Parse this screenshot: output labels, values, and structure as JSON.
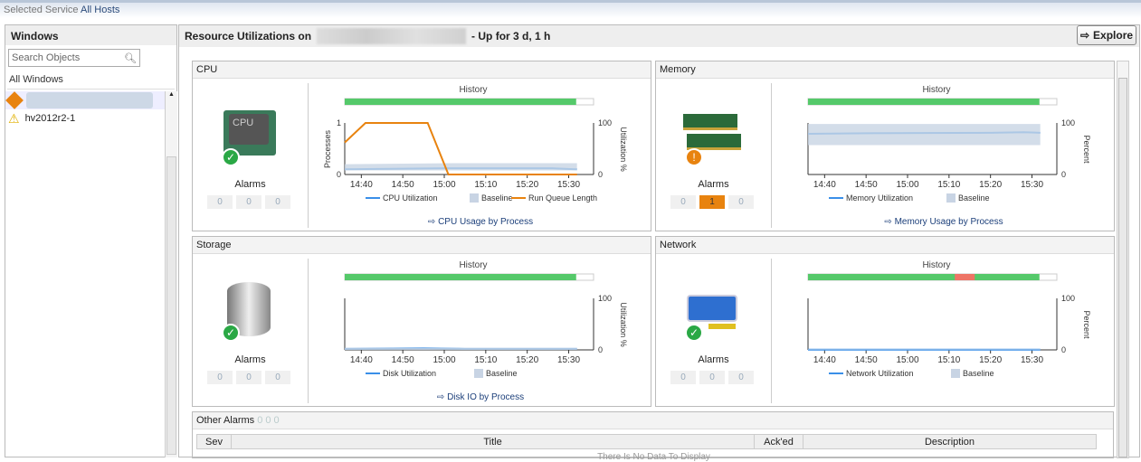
{
  "topbar": {
    "label": "Selected Service",
    "value": "All Hosts"
  },
  "left": {
    "title": "Windows",
    "search_placeholder": "Search Objects",
    "all": "All Windows",
    "items": [
      {
        "label": "",
        "icon": "fatal-alarm-icon"
      },
      {
        "label": "hv2012r2-1",
        "icon": "warning-icon"
      }
    ]
  },
  "main": {
    "title_prefix": "Resource Utilizations on",
    "title_suffix": "- Up for 3 d, 1 h",
    "explore": "Explore"
  },
  "colors": {
    "util": "#3a8fe8",
    "baseline": "#c8d4e4",
    "runqueue": "#e8830f",
    "history_ok": "#55c96a",
    "history_bad": "#ee7466"
  },
  "cards": [
    {
      "key": "cpu",
      "title": "CPU",
      "icon": "cpu-chip-icon",
      "alarms_label": "Alarms",
      "alarms": [
        0,
        0,
        0
      ],
      "history_label": "History",
      "history_ok": 0.93,
      "history_bad": null,
      "link": "CPU Usage by Process",
      "right_label": "Utilization %",
      "left_label": "Processes",
      "chart_data": {
        "type": "line",
        "x_ticks": [
          "14:40",
          "14:50",
          "15:00",
          "15:10",
          "15:20",
          "15:30"
        ],
        "y_right": [
          0,
          100
        ],
        "y_left": [
          0,
          1
        ],
        "series": [
          {
            "name": "CPU Utilization",
            "kind": "util",
            "points": [
              [
                "14:36",
                10
              ],
              [
                "15:00",
                12
              ],
              [
                "15:26",
                12
              ],
              [
                "15:32",
                10
              ]
            ]
          },
          {
            "name": "Baseline",
            "kind": "baseline",
            "band": [
              [
                "14:36",
                8,
                20
              ],
              [
                "15:02",
                8,
                22
              ],
              [
                "15:32",
                8,
                22
              ]
            ]
          },
          {
            "name": "Run Queue Length",
            "kind": "runqueue",
            "axis": "left",
            "points": [
              [
                "14:36",
                0.62
              ],
              [
                "14:41",
                1
              ],
              [
                "14:56",
                1
              ],
              [
                "15:01",
                0
              ],
              [
                "15:32",
                0
              ]
            ]
          }
        ]
      }
    },
    {
      "key": "memory",
      "title": "Memory",
      "icon": "memory-modules-icon",
      "alarms_label": "Alarms",
      "alarms": [
        0,
        1,
        0
      ],
      "history_label": "History",
      "history_ok": 0.93,
      "history_bad": null,
      "link": "Memory Usage by Process",
      "right_label": "Percent",
      "left_label": "",
      "chart_data": {
        "type": "line",
        "x_ticks": [
          "14:40",
          "14:50",
          "15:00",
          "15:10",
          "15:20",
          "15:30"
        ],
        "y_right": [
          0,
          100
        ],
        "series": [
          {
            "name": "Memory Utilization",
            "kind": "util",
            "points": [
              [
                "14:36",
                79
              ],
              [
                "14:50",
                80
              ],
              [
                "15:20",
                81
              ],
              [
                "15:28",
                82
              ],
              [
                "15:32",
                81
              ]
            ]
          },
          {
            "name": "Baseline",
            "kind": "baseline",
            "band": [
              [
                "14:36",
                57,
                98
              ],
              [
                "15:32",
                57,
                98
              ]
            ]
          }
        ]
      }
    },
    {
      "key": "storage",
      "title": "Storage",
      "icon": "database-icon",
      "alarms_label": "Alarms",
      "alarms": [
        0,
        0,
        0
      ],
      "history_label": "History",
      "history_ok": 0.93,
      "history_bad": null,
      "link": "Disk IO by Process",
      "right_label": "Utilization %",
      "left_label": "",
      "chart_data": {
        "type": "line",
        "x_ticks": [
          "14:40",
          "14:50",
          "15:00",
          "15:10",
          "15:20",
          "15:30"
        ],
        "y_right": [
          0,
          100
        ],
        "series": [
          {
            "name": "Disk Utilization",
            "kind": "util",
            "points": [
              [
                "14:36",
                2
              ],
              [
                "14:55",
                3
              ],
              [
                "15:05",
                2
              ],
              [
                "15:32",
                2
              ]
            ]
          },
          {
            "name": "Baseline",
            "kind": "baseline",
            "band": [
              [
                "14:36",
                0,
                4
              ],
              [
                "15:32",
                0,
                4
              ]
            ]
          }
        ]
      }
    },
    {
      "key": "network",
      "title": "Network",
      "icon": "network-adapter-icon",
      "alarms_label": "Alarms",
      "alarms": [
        0,
        0,
        0
      ],
      "history_label": "History",
      "history_ok": 0.93,
      "history_bad": [
        0.59,
        0.67
      ],
      "link": "",
      "right_label": "Percent",
      "left_label": "",
      "chart_data": {
        "type": "line",
        "x_ticks": [
          "14:40",
          "14:50",
          "15:00",
          "15:10",
          "15:20",
          "15:30"
        ],
        "y_right": [
          0,
          100
        ],
        "series": [
          {
            "name": "Network Utilization",
            "kind": "util",
            "points": [
              [
                "14:36",
                0.5
              ],
              [
                "15:32",
                0.5
              ]
            ]
          },
          {
            "name": "Baseline",
            "kind": "baseline",
            "band": [
              [
                "14:36",
                0,
                1
              ],
              [
                "15:32",
                0,
                1
              ]
            ]
          }
        ]
      }
    }
  ],
  "other": {
    "title": "Other Alarms",
    "counts": [
      0,
      0,
      0
    ],
    "columns": [
      "Sev",
      "Title",
      "Ack'ed",
      "Description"
    ],
    "empty": "There Is No Data To Display"
  }
}
